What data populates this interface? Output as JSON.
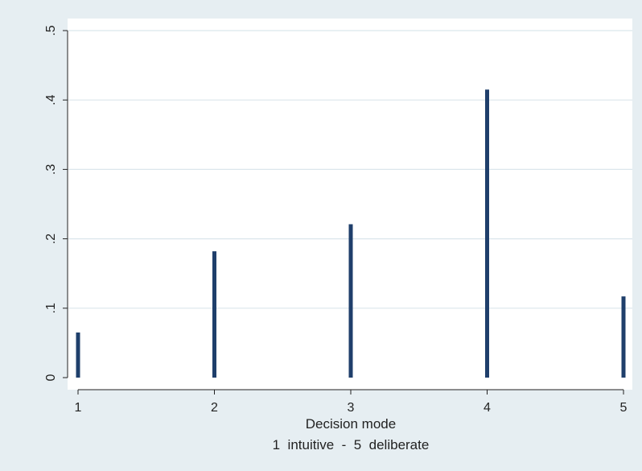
{
  "chart_data": {
    "type": "bar",
    "categories": [
      "1",
      "2",
      "3",
      "4",
      "5"
    ],
    "x": [
      1,
      2,
      3,
      4,
      5
    ],
    "values": [
      0.065,
      0.182,
      0.221,
      0.415,
      0.117
    ],
    "title": "",
    "xlabel": "Decision mode",
    "xlabel_sub": "1  intuitive  -  5  deliberate",
    "ylabel": "",
    "xlim": [
      1,
      5
    ],
    "ylim": [
      0,
      0.5
    ],
    "y_ticks": [
      0,
      0.1,
      0.2,
      0.3,
      0.4,
      0.5
    ],
    "y_tick_labels": [
      "0",
      ".1",
      ".2",
      ".3",
      ".4",
      ".5"
    ],
    "x_ticks": [
      1,
      2,
      3,
      4,
      5
    ],
    "x_tick_labels": [
      "1",
      "2",
      "3",
      "4",
      "5"
    ],
    "grid": true,
    "legend": "none",
    "colors": {
      "bar": "#1f3f6b",
      "outer_background": "#e6eef2",
      "plot_background": "#ffffff",
      "gridline": "#dbe6ec",
      "axis": "#222222"
    }
  }
}
